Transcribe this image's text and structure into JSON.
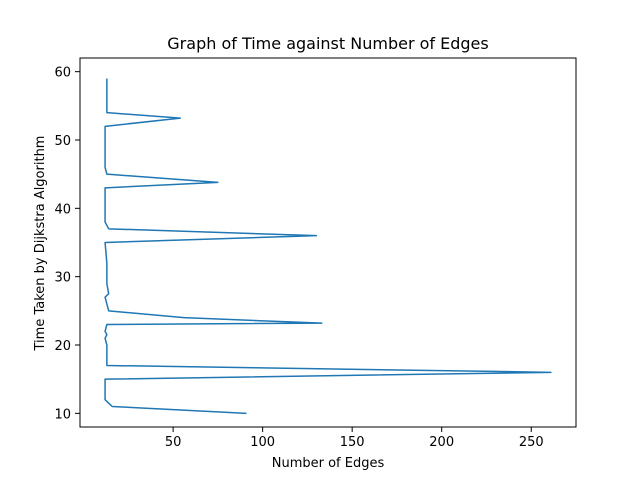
{
  "chart_data": {
    "type": "line",
    "title": "Graph of Time against Number of Edges",
    "xlabel": "Number of Edges",
    "ylabel": "Time Taken by Dijkstra Algorithm",
    "xlim": [
      -2,
      275
    ],
    "ylim": [
      8,
      62
    ],
    "xticks": [
      50,
      100,
      150,
      200,
      250
    ],
    "yticks": [
      10,
      20,
      30,
      40,
      50,
      60
    ],
    "grid": false,
    "series": [
      {
        "color": "#1f77b4",
        "x": [
          91,
          16,
          12,
          12,
          261,
          13,
          13,
          12,
          13,
          12,
          13,
          133,
          56,
          14,
          12,
          14,
          13,
          13,
          12,
          130,
          14,
          12,
          12,
          75,
          13,
          12,
          12,
          54,
          13,
          13,
          13
        ],
        "y": [
          10,
          11,
          12,
          15,
          16,
          17,
          20,
          21,
          21.5,
          22,
          23,
          23.2,
          24,
          25,
          27,
          27.5,
          29,
          32,
          35,
          36,
          37,
          38,
          43,
          43.8,
          45,
          46,
          52,
          53.2,
          54,
          55,
          59
        ]
      }
    ]
  }
}
